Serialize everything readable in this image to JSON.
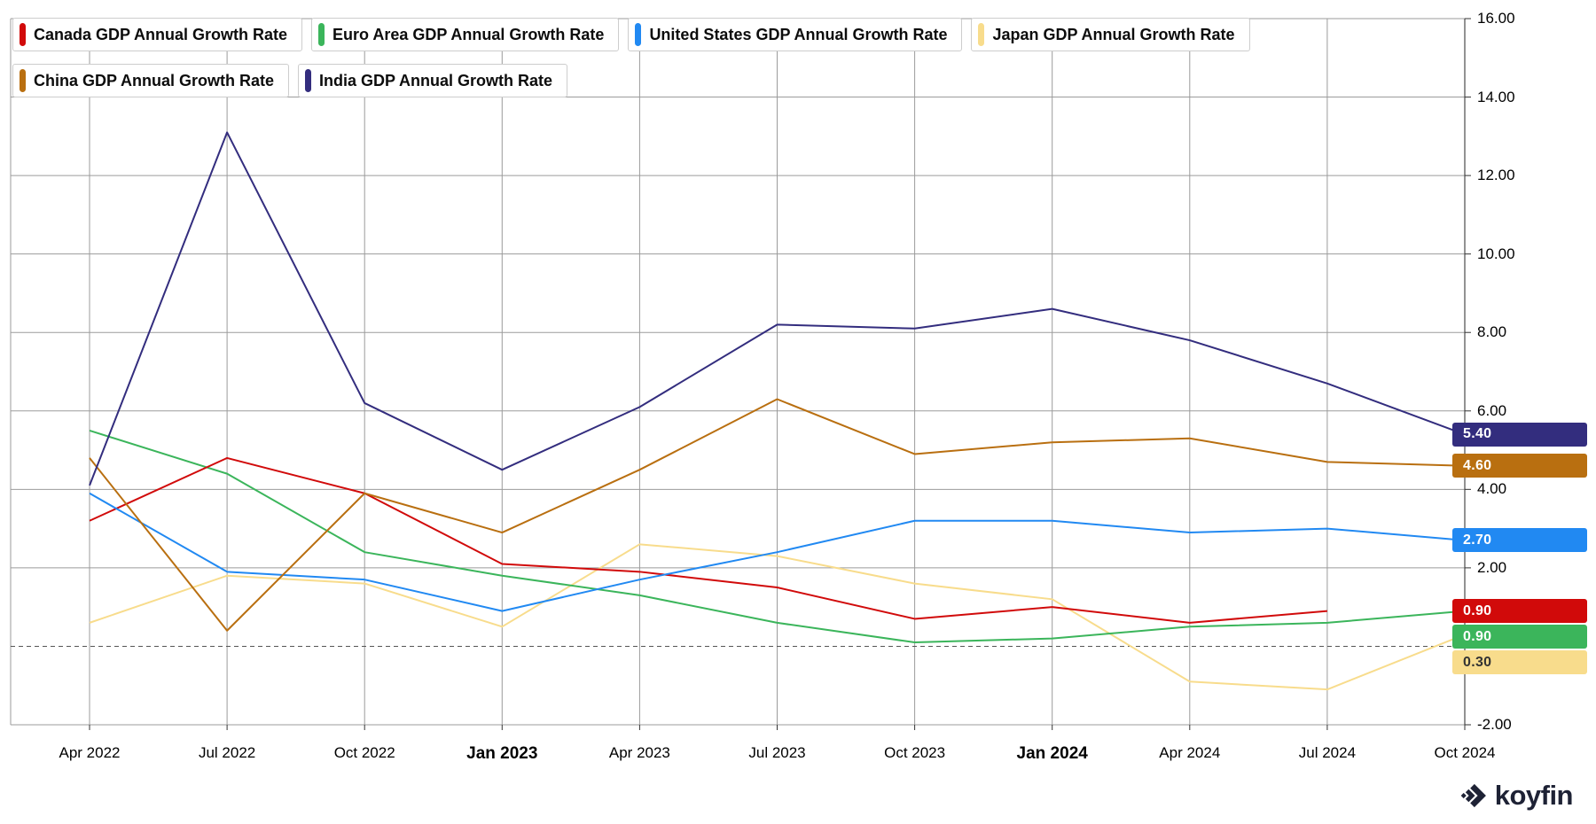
{
  "brand": {
    "logo_text": "koyfin"
  },
  "legend": {
    "rows": [
      [
        {
          "label": "Canada GDP Annual Growth Rate",
          "color": "#d10a0a"
        },
        {
          "label": "Euro Area GDP Annual Growth Rate",
          "color": "#3bb55b"
        },
        {
          "label": "United States GDP Annual Growth Rate",
          "color": "#2189f2"
        },
        {
          "label": "Japan GDP Annual Growth Rate",
          "color": "#f8dc8c"
        }
      ],
      [
        {
          "label": "China GDP Annual Growth Rate",
          "color": "#b96f10"
        },
        {
          "label": "India GDP Annual Growth Rate",
          "color": "#332d7e"
        }
      ]
    ]
  },
  "chart_data": {
    "type": "line",
    "x": [
      "Apr 2022",
      "Jul 2022",
      "Oct 2022",
      "Jan 2023",
      "Apr 2023",
      "Jul 2023",
      "Oct 2023",
      "Jan 2024",
      "Apr 2024",
      "Jul 2024",
      "Oct 2024"
    ],
    "bold_x_labels": [
      "Jan 2023",
      "Jan 2024"
    ],
    "ylim": [
      -2,
      16
    ],
    "grid": true,
    "zero_line": "dashed",
    "legend_position": "top-left",
    "y_axis_labels": [
      {
        "value": 16,
        "label": "16.00"
      },
      {
        "value": 14,
        "label": "14.00"
      },
      {
        "value": 12,
        "label": "12.00"
      },
      {
        "value": 10,
        "label": "10.00"
      },
      {
        "value": 8,
        "label": "8.00"
      },
      {
        "value": 6,
        "label": "6.00"
      },
      {
        "value": 4,
        "label": "4.00"
      },
      {
        "value": 2,
        "label": "2.00"
      },
      {
        "value": -2,
        "label": "-2.00"
      }
    ],
    "series": [
      {
        "name": "Canada GDP Annual Growth Rate",
        "color": "#d10a0a",
        "badge": "0.90",
        "badge_text_color": "#ffffff",
        "values": [
          3.2,
          4.8,
          3.9,
          2.1,
          1.9,
          1.5,
          0.7,
          1.0,
          0.6,
          0.9,
          null
        ]
      },
      {
        "name": "Euro Area GDP Annual Growth Rate",
        "color": "#3bb55b",
        "badge": "0.90",
        "badge_text_color": "#ffffff",
        "values": [
          5.5,
          4.4,
          2.4,
          1.8,
          1.3,
          0.6,
          0.1,
          0.2,
          0.5,
          0.6,
          0.9
        ]
      },
      {
        "name": "United States GDP Annual Growth Rate",
        "color": "#2189f2",
        "badge": "2.70",
        "badge_text_color": "#ffffff",
        "values": [
          3.9,
          1.9,
          1.7,
          0.9,
          1.7,
          2.4,
          3.2,
          3.2,
          2.9,
          3.0,
          2.7
        ]
      },
      {
        "name": "Japan GDP Annual Growth Rate",
        "color": "#f8dc8c",
        "badge": "0.30",
        "badge_text_color": "#333333",
        "values": [
          0.6,
          1.8,
          1.6,
          0.5,
          2.6,
          2.3,
          1.6,
          1.2,
          -0.9,
          -1.1,
          0.3
        ]
      },
      {
        "name": "China GDP Annual Growth Rate",
        "color": "#b96f10",
        "badge": "4.60",
        "badge_text_color": "#ffffff",
        "values": [
          4.8,
          0.4,
          3.9,
          2.9,
          4.5,
          6.3,
          4.9,
          5.2,
          5.3,
          4.7,
          4.6
        ]
      },
      {
        "name": "India GDP Annual Growth Rate",
        "color": "#332d7e",
        "badge": "5.40",
        "badge_text_color": "#ffffff",
        "values": [
          4.1,
          13.1,
          6.2,
          4.5,
          6.1,
          8.2,
          8.1,
          8.6,
          7.8,
          6.7,
          5.4
        ]
      }
    ]
  }
}
